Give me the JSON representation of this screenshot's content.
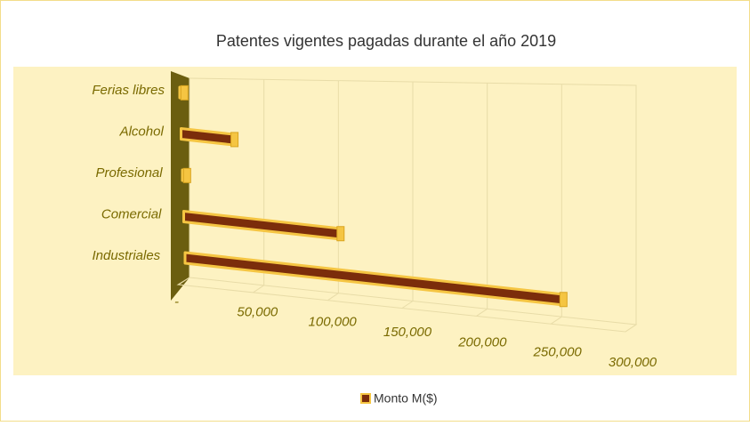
{
  "chart_data": {
    "type": "bar3d",
    "title": "Patentes vigentes pagadas durante el año 2019",
    "categories": [
      "Industriales",
      "Comercial",
      "Profesional",
      "Alcohol",
      "Ferias libres"
    ],
    "series": [
      {
        "name": "Monto M($)",
        "color": "#7b2d0b",
        "values": [
          255000,
          105000,
          2000,
          35000,
          2000
        ]
      }
    ],
    "xlim": [
      0,
      300000
    ],
    "xticks": [
      {
        "value": 0,
        "label": "-"
      },
      {
        "value": 50000,
        "label": "50,000"
      },
      {
        "value": 100000,
        "label": "100,000"
      },
      {
        "value": 150000,
        "label": "150,000"
      },
      {
        "value": 200000,
        "label": "200,000"
      },
      {
        "value": 250000,
        "label": "250,000"
      },
      {
        "value": 300000,
        "label": "300,000"
      }
    ],
    "grid": true,
    "legend": "bottom"
  }
}
